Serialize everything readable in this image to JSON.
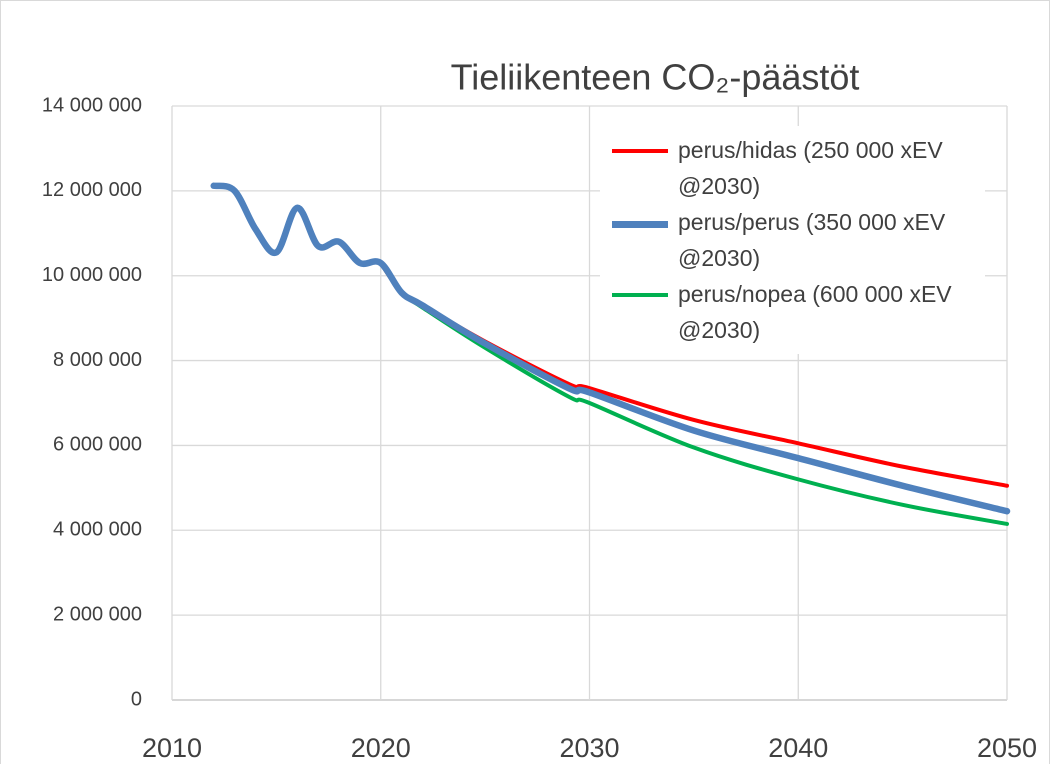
{
  "chart_data": {
    "type": "line",
    "title": "Tieliikenteen CO₂-päästöt",
    "x": [
      2012,
      2013,
      2014,
      2015,
      2016,
      2017,
      2018,
      2019,
      2020,
      2021,
      2022,
      2025,
      2029,
      2030,
      2035,
      2040,
      2045,
      2050
    ],
    "series": [
      {
        "name": "perus/hidas (250 000 xEV @2030)",
        "color": "#ff0000",
        "values": [
          null,
          null,
          null,
          null,
          null,
          null,
          null,
          null,
          10300000,
          9600000,
          9300000,
          8450000,
          7450000,
          7350000,
          6600000,
          6050000,
          5500000,
          5050000
        ]
      },
      {
        "name": "perus/perus (350 000 xEV @2030)",
        "color": "#4f81bd",
        "values": [
          12120000,
          12000000,
          11100000,
          10550000,
          11600000,
          10700000,
          10800000,
          10300000,
          10300000,
          9600000,
          9300000,
          8400000,
          7350000,
          7250000,
          6350000,
          5700000,
          5050000,
          4450000
        ]
      },
      {
        "name": "perus/nopea (600 000 xEV @2030)",
        "color": "#00b050",
        "values": [
          null,
          null,
          null,
          null,
          null,
          null,
          null,
          null,
          10300000,
          9600000,
          9250000,
          8300000,
          7150000,
          7000000,
          5950000,
          5200000,
          4600000,
          4150000
        ]
      }
    ],
    "xlim": [
      2010,
      2050
    ],
    "xticks": [
      2010,
      2020,
      2030,
      2040,
      2050
    ],
    "ylim": [
      0,
      14000000
    ],
    "yticks": [
      0,
      {
        "value": 2000000,
        "label": "2 000 000"
      },
      {
        "value": 4000000,
        "label": "4 000 000"
      },
      {
        "value": 6000000,
        "label": "6 000 000"
      },
      {
        "value": 8000000,
        "label": "8 000 000"
      },
      {
        "value": 10000000,
        "label": "10 000 000"
      },
      {
        "value": 12000000,
        "label": "12 000 000"
      },
      {
        "value": 14000000,
        "label": "14 000 000"
      }
    ],
    "grid": true,
    "legend": "top-right"
  }
}
